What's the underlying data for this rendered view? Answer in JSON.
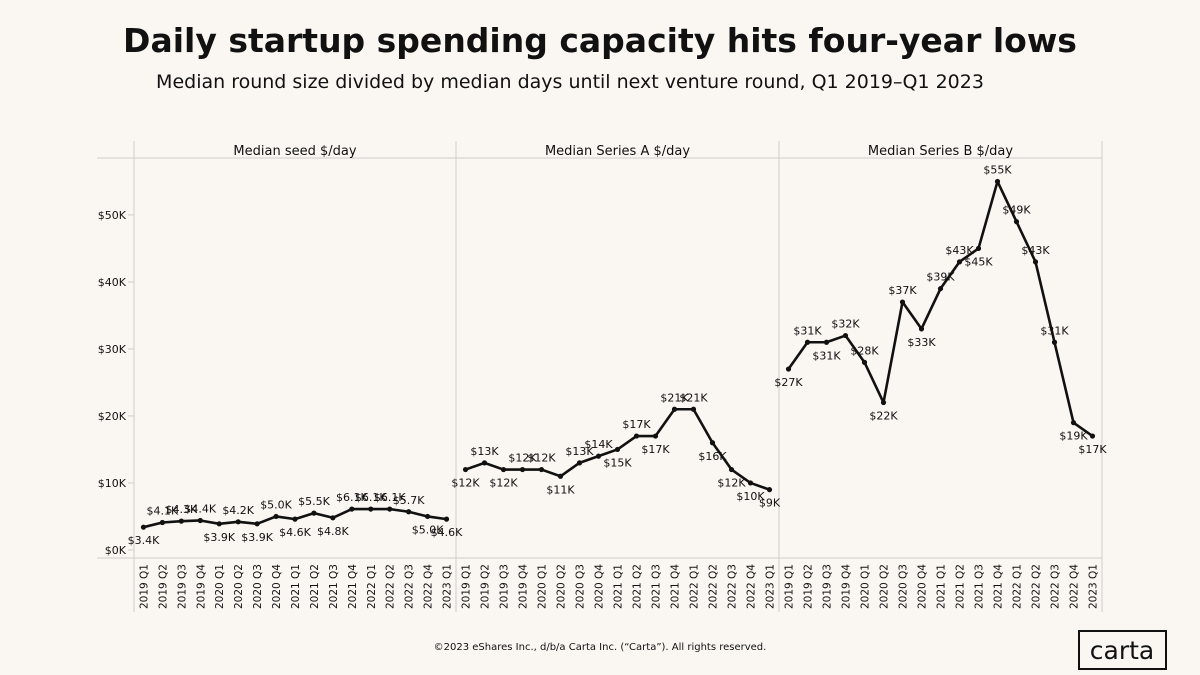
{
  "title": "Daily startup spending capacity hits four-year lows",
  "subtitle": "Median round size divided by median days until next venture round, Q1 2019–Q1 2023",
  "footer": "©2023 eShares Inc., d/b/a Carta Inc. (“Carta”). All rights reserved.",
  "logo": "carta",
  "chart_data": [
    {
      "type": "line",
      "title": "Median seed $/day",
      "color": "#111111",
      "categories": [
        "2019 Q1",
        "2019 Q2",
        "2019 Q3",
        "2019 Q4",
        "2020 Q1",
        "2020 Q2",
        "2020 Q3",
        "2020 Q4",
        "2021 Q1",
        "2021 Q2",
        "2021 Q3",
        "2021 Q4",
        "2022 Q1",
        "2022 Q2",
        "2022 Q3",
        "2022 Q4",
        "2023 Q1"
      ],
      "values": [
        3400,
        4100,
        4300,
        4400,
        3900,
        4200,
        3900,
        5000,
        4600,
        5500,
        4800,
        6100,
        6100,
        6100,
        5700,
        5000,
        4600
      ],
      "value_labels": [
        "$3.4K",
        "$4.1K",
        "$4.3K",
        "$4.4K",
        "$3.9K",
        "$4.2K",
        "$3.9K",
        "$5.0K",
        "$4.6K",
        "$5.5K",
        "$4.8K",
        "$6.1K",
        "$6.1K",
        "$6.1K",
        "$5.7K",
        "$5.0K",
        "$4.6K"
      ],
      "ylim": [
        -1200,
        58500
      ],
      "yticks": [
        {
          "value": 0,
          "label": "$0K"
        },
        {
          "value": 10000,
          "label": "$10K"
        },
        {
          "value": 20000,
          "label": "$20K"
        },
        {
          "value": 30000,
          "label": "$30K"
        },
        {
          "value": 40000,
          "label": "$40K"
        },
        {
          "value": 50000,
          "label": "$50K"
        }
      ]
    },
    {
      "type": "line",
      "title": "Median Series A $/day",
      "color": "#111111",
      "categories": [
        "2019 Q1",
        "2019 Q2",
        "2019 Q3",
        "2019 Q4",
        "2020 Q1",
        "2020 Q2",
        "2020 Q3",
        "2020 Q4",
        "2021 Q1",
        "2021 Q2",
        "2021 Q3",
        "2021 Q4",
        "2022 Q1",
        "2022 Q2",
        "2022 Q3",
        "2022 Q4",
        "2023 Q1"
      ],
      "values": [
        12000,
        13000,
        12000,
        12000,
        12000,
        11000,
        13000,
        14000,
        15000,
        17000,
        17000,
        21000,
        21000,
        16000,
        12000,
        10000,
        9000
      ],
      "value_labels": [
        "$12K",
        "$13K",
        "$12K",
        "$12K",
        "$12K",
        "$11K",
        "$13K",
        "$14K",
        "$15K",
        "$17K",
        "$17K",
        "$21K",
        "$21K",
        "$16K",
        "$12K",
        "$10K",
        "$9K"
      ]
    },
    {
      "type": "line",
      "title": "Median Series B $/day",
      "color": "#111111",
      "categories": [
        "2019 Q1",
        "2019 Q2",
        "2019 Q3",
        "2019 Q4",
        "2020 Q1",
        "2020 Q2",
        "2020 Q3",
        "2020 Q4",
        "2021 Q1",
        "2021 Q2",
        "2021 Q3",
        "2021 Q4",
        "2022 Q1",
        "2022 Q2",
        "2022 Q3",
        "2022 Q4",
        "2023 Q1"
      ],
      "values": [
        27000,
        31000,
        31000,
        32000,
        28000,
        22000,
        37000,
        33000,
        39000,
        43000,
        45000,
        55000,
        49000,
        43000,
        31000,
        19000,
        17000
      ],
      "value_labels": [
        "$27K",
        "$31K",
        "$31K",
        "$32K",
        "$28K",
        "$22K",
        "$37K",
        "$33K",
        "$39K",
        "$43K",
        "$45K",
        "$55K",
        "$49K",
        "$43K",
        "$31K",
        "$19K",
        "$17K"
      ]
    }
  ]
}
